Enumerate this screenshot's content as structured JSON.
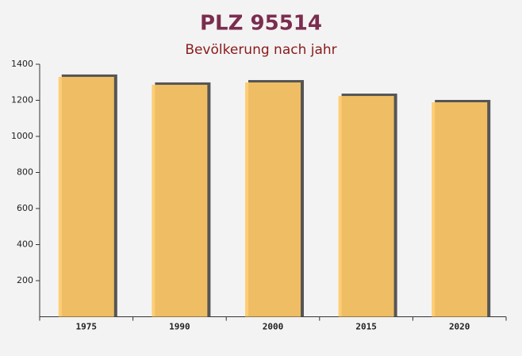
{
  "chart_data": {
    "type": "bar",
    "title": "PLZ 95514",
    "subtitle": "Bevölkerung nach jahr",
    "categories": [
      "1975",
      "1990",
      "2000",
      "2015",
      "2020"
    ],
    "values": [
      1330,
      1286,
      1299,
      1224,
      1189
    ],
    "color": "#ffc966",
    "ylim": [
      0,
      1400
    ],
    "yticks": [
      200,
      400,
      600,
      800,
      1000,
      1200,
      1400
    ]
  }
}
